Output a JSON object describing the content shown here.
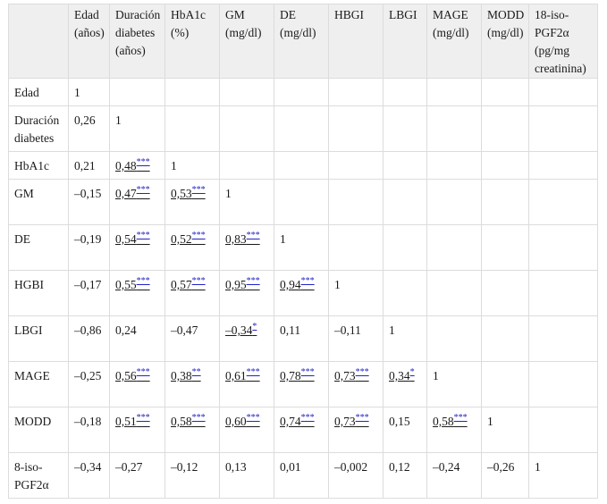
{
  "columns": [
    "",
    "Edad (años)",
    "Duración diabetes (años)",
    "HbA1c (%)",
    "GM (mg/dl)",
    "DE (mg/dl)",
    "HBGI",
    "LBGI",
    "MAGE (mg/dl)",
    "MODD (mg/dl)",
    "18-iso-PGF2α (pg/mg creatinina)"
  ],
  "rows": [
    {
      "label": "Edad",
      "cells": [
        {
          "v": "1"
        }
      ]
    },
    {
      "label": "Duración diabetes",
      "cells": [
        {
          "v": "0,26"
        },
        {
          "v": "1"
        }
      ]
    },
    {
      "label": "HbA1c",
      "cells": [
        {
          "v": "0,21"
        },
        {
          "v": "0,48",
          "sig": "***"
        },
        {
          "v": "1"
        }
      ]
    },
    {
      "label": "GM",
      "cells": [
        {
          "v": "–0,15"
        },
        {
          "v": "0,47",
          "sig": "***"
        },
        {
          "v": "0,53",
          "sig": "***"
        },
        {
          "v": "1"
        }
      ]
    },
    {
      "label": "DE",
      "cells": [
        {
          "v": "–0,19"
        },
        {
          "v": "0,54",
          "sig": "***"
        },
        {
          "v": "0,52",
          "sig": "***"
        },
        {
          "v": "0,83",
          "sig": "***"
        },
        {
          "v": "1"
        }
      ]
    },
    {
      "label": "HGBI",
      "cells": [
        {
          "v": "–0,17"
        },
        {
          "v": "0,55",
          "sig": "***"
        },
        {
          "v": "0,57",
          "sig": "***"
        },
        {
          "v": "0,95",
          "sig": "***"
        },
        {
          "v": "0,94",
          "sig": "***"
        },
        {
          "v": "1"
        }
      ]
    },
    {
      "label": "LBGI",
      "cells": [
        {
          "v": "–0,86"
        },
        {
          "v": "0,24"
        },
        {
          "v": "–0,47"
        },
        {
          "v": "–0,34",
          "sig": "*"
        },
        {
          "v": "0,11"
        },
        {
          "v": "–0,11"
        },
        {
          "v": "1"
        }
      ]
    },
    {
      "label": "MAGE",
      "cells": [
        {
          "v": "–0,25"
        },
        {
          "v": "0,56",
          "sig": "***"
        },
        {
          "v": "0,38",
          "sig": "**"
        },
        {
          "v": "0,61",
          "sig": "***"
        },
        {
          "v": "0,78",
          "sig": "***"
        },
        {
          "v": "0,73",
          "sig": "***"
        },
        {
          "v": "0,34",
          "sig": "*"
        },
        {
          "v": "1"
        }
      ]
    },
    {
      "label": "MODD",
      "cells": [
        {
          "v": "–0,18"
        },
        {
          "v": "0,51",
          "sig": "***"
        },
        {
          "v": "0,58",
          "sig": "***"
        },
        {
          "v": "0,60",
          "sig": "***"
        },
        {
          "v": "0,74",
          "sig": "***"
        },
        {
          "v": "0,73",
          "sig": "***"
        },
        {
          "v": "0,15"
        },
        {
          "v": "0,58",
          "sig": "***"
        },
        {
          "v": "1"
        }
      ]
    },
    {
      "label": "8-iso-PGF2α",
      "cells": [
        {
          "v": "–0,34"
        },
        {
          "v": "–0,27"
        },
        {
          "v": "–0,12"
        },
        {
          "v": "0,13"
        },
        {
          "v": "0,01"
        },
        {
          "v": "–0,002"
        },
        {
          "v": "0,12"
        },
        {
          "v": "–0,24"
        },
        {
          "v": "–0,26"
        },
        {
          "v": "1"
        }
      ]
    }
  ]
}
